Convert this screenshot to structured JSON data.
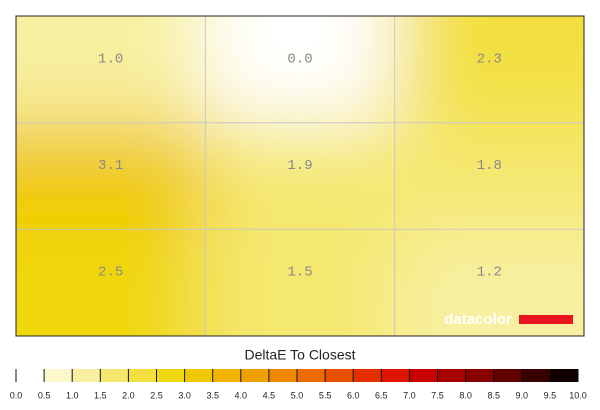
{
  "chart_data": {
    "type": "heatmap",
    "values": [
      [
        1.0,
        0.0,
        2.3
      ],
      [
        3.1,
        1.9,
        1.8
      ],
      [
        2.5,
        1.5,
        1.2
      ]
    ],
    "value_labels": [
      [
        "1.0",
        "0.0",
        "2.3"
      ],
      [
        "3.1",
        "1.9",
        "1.8"
      ],
      [
        "2.5",
        "1.5",
        "1.2"
      ]
    ],
    "logo": "datacolor",
    "colorbar": {
      "title": "DeltaE To Closest",
      "lim": [
        0,
        10
      ],
      "ticks": [
        {
          "value": 0,
          "label": "0.0"
        },
        0.5,
        {
          "value": 1,
          "label": "1.0"
        },
        1.5,
        {
          "value": 2,
          "label": "2.0"
        },
        2.5,
        {
          "value": 3,
          "label": "3.0"
        },
        3.5,
        {
          "value": 4,
          "label": "4.0"
        },
        4.5,
        {
          "value": 5,
          "label": "5.0"
        },
        5.5,
        {
          "value": 6,
          "label": "6.0"
        },
        6.5,
        {
          "value": 7,
          "label": "7.0"
        },
        7.5,
        {
          "value": 8,
          "label": "8.0"
        },
        8.5,
        {
          "value": 9,
          "label": "9.0"
        },
        9.5,
        {
          "value": 10,
          "label": "10.0"
        }
      ],
      "colors": [
        "#ffffff",
        "#fbf8cc",
        "#f8f0a0",
        "#f5e870",
        "#f3e040",
        "#f0d810",
        "#f0c800",
        "#f0b400",
        "#eea000",
        "#ee8800",
        "#ec6a00",
        "#e85000",
        "#e43000",
        "#dc1400",
        "#c80000",
        "#a80000",
        "#880000",
        "#600000",
        "#380000",
        "#100000"
      ]
    }
  }
}
